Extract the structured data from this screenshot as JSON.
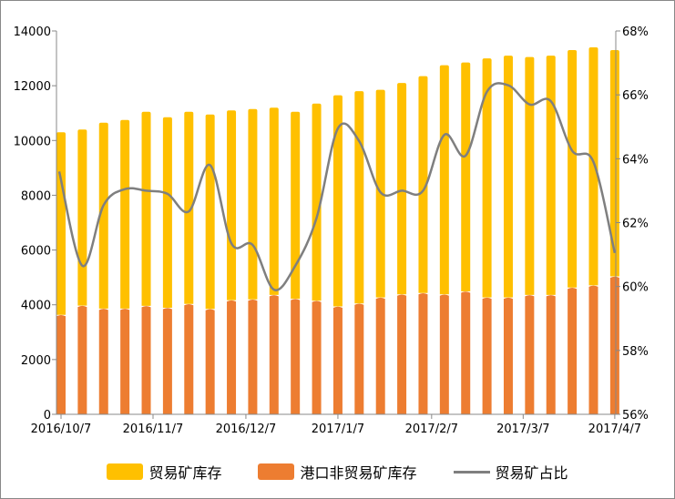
{
  "chart_data": {
    "type": "bar",
    "stacked": true,
    "series": [
      {
        "name": "港口非贸易矿库存",
        "color": "#ED7D31",
        "axis": "left",
        "values": [
          3635,
          3968,
          3860,
          3860,
          3960,
          3890,
          4030,
          3850,
          4170,
          4200,
          4360,
          4220,
          4150,
          3940,
          4050,
          4270,
          4380,
          4430,
          4380,
          4490,
          4270,
          4270,
          4360,
          4360,
          4630,
          4710,
          5040
        ]
      },
      {
        "name": "贸易矿库存",
        "color": "#FFC000",
        "axis": "left",
        "totals": [
          10300,
          10400,
          10650,
          10750,
          11050,
          10850,
          11050,
          10950,
          11100,
          11150,
          11200,
          11050,
          11350,
          11650,
          11800,
          11850,
          12100,
          12350,
          12750,
          12850,
          13000,
          13100,
          13050,
          13100,
          13300,
          13400,
          13300
        ]
      },
      {
        "name": "贸易矿占比",
        "type": "line",
        "color": "#7F7F7F",
        "axis": "right",
        "values": [
          63.6,
          60.65,
          62.55,
          63.05,
          63.0,
          62.9,
          62.35,
          63.8,
          61.35,
          61.3,
          59.9,
          60.65,
          62.15,
          64.95,
          64.55,
          62.95,
          63.0,
          63.0,
          64.75,
          64.1,
          66.1,
          66.3,
          65.7,
          65.8,
          64.25,
          63.9,
          61.05
        ]
      }
    ],
    "x_ticks": [
      {
        "label": "2016/10/7",
        "index": 0
      },
      {
        "label": "2016/11/7",
        "index": 4.32
      },
      {
        "label": "2016/12/7",
        "index": 8.68
      },
      {
        "label": "2017/1/7",
        "index": 13
      },
      {
        "label": "2017/2/7",
        "index": 17.4
      },
      {
        "label": "2017/3/7",
        "index": 21.7
      },
      {
        "label": "2017/4/7",
        "index": 26
      }
    ],
    "y_left": {
      "min": 0,
      "max": 14000,
      "ticks": [
        "0",
        "2000",
        "4000",
        "6000",
        "8000",
        "10000",
        "12000",
        "14000"
      ]
    },
    "y_right": {
      "min": 56,
      "max": 68,
      "ticks": [
        "56%",
        "58%",
        "60%",
        "62%",
        "64%",
        "66%",
        "68%"
      ]
    },
    "legend": [
      "贸易矿库存",
      "港口非贸易矿库存",
      "贸易矿占比"
    ],
    "legend_position": "bottom"
  }
}
